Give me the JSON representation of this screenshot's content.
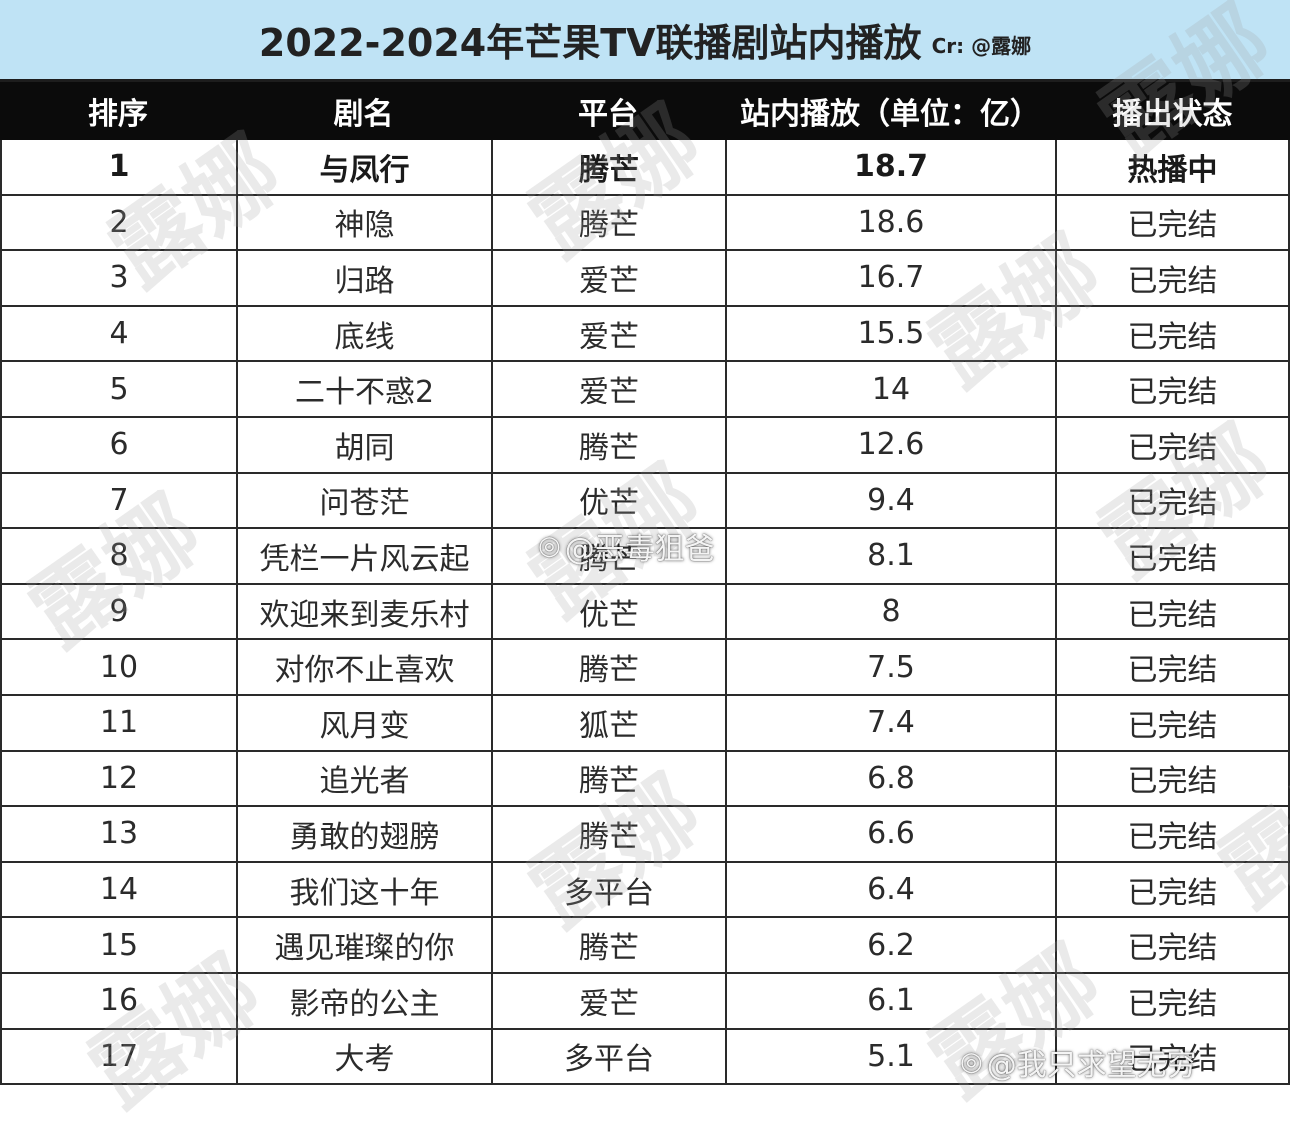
{
  "title": "2022-2024年芒果TV联播剧站内播放",
  "credit": "Cr: @露娜",
  "headers": [
    "排序",
    "剧名",
    "平台",
    "站内播放（单位：亿）",
    "播出状态"
  ],
  "rows": [
    {
      "rank": "1",
      "name": "与凤行",
      "platform": "腾芒",
      "plays": "18.7",
      "status": "热播中"
    },
    {
      "rank": "2",
      "name": "神隐",
      "platform": "腾芒",
      "plays": "18.6",
      "status": "已完结"
    },
    {
      "rank": "3",
      "name": "归路",
      "platform": "爱芒",
      "plays": "16.7",
      "status": "已完结"
    },
    {
      "rank": "4",
      "name": "底线",
      "platform": "爱芒",
      "plays": "15.5",
      "status": "已完结"
    },
    {
      "rank": "5",
      "name": "二十不惑2",
      "platform": "爱芒",
      "plays": "14",
      "status": "已完结"
    },
    {
      "rank": "6",
      "name": "胡同",
      "platform": "腾芒",
      "plays": "12.6",
      "status": "已完结"
    },
    {
      "rank": "7",
      "name": "问苍茫",
      "platform": "优芒",
      "plays": "9.4",
      "status": "已完结"
    },
    {
      "rank": "8",
      "name": "凭栏一片风云起",
      "platform": "腾芒",
      "plays": "8.1",
      "status": "已完结"
    },
    {
      "rank": "9",
      "name": "欢迎来到麦乐村",
      "platform": "优芒",
      "plays": "8",
      "status": "已完结"
    },
    {
      "rank": "10",
      "name": "对你不止喜欢",
      "platform": "腾芒",
      "plays": "7.5",
      "status": "已完结"
    },
    {
      "rank": "11",
      "name": "风月变",
      "platform": "狐芒",
      "plays": "7.4",
      "status": "已完结"
    },
    {
      "rank": "12",
      "name": "追光者",
      "platform": "腾芒",
      "plays": "6.8",
      "status": "已完结"
    },
    {
      "rank": "13",
      "name": "勇敢的翅膀",
      "platform": "腾芒",
      "plays": "6.6",
      "status": "已完结"
    },
    {
      "rank": "14",
      "name": "我们这十年",
      "platform": "多平台",
      "plays": "6.4",
      "status": "已完结"
    },
    {
      "rank": "15",
      "name": "遇见璀璨的你",
      "platform": "腾芒",
      "plays": "6.2",
      "status": "已完结"
    },
    {
      "rank": "16",
      "name": "影帝的公主",
      "platform": "爱芒",
      "plays": "6.1",
      "status": "已完结"
    },
    {
      "rank": "17",
      "name": "大考",
      "platform": "多平台",
      "plays": "5.1",
      "status": "已完结"
    }
  ],
  "watermark_text": "露娜",
  "weibo_marks": [
    "@恶毒狙爸",
    "@我只求望无穷"
  ],
  "colors": {
    "title_bg": "#bfe3f5",
    "header_bg": "#0b0b0b",
    "header_text": "#ffffff"
  }
}
